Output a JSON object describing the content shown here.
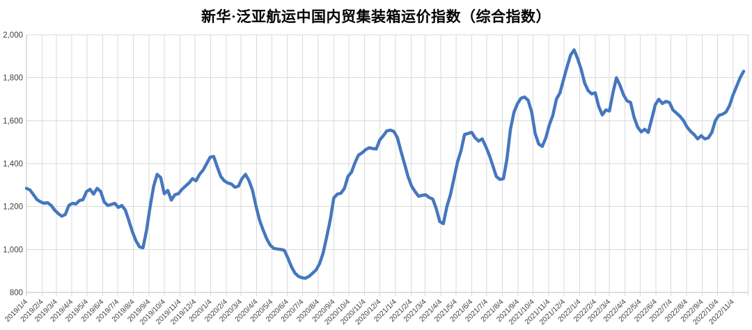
{
  "chart_data": {
    "type": "line",
    "title": "新华·泛亚航运中国内贸集装箱运价指数（综合指数）",
    "grid": true,
    "legend": "none",
    "background_color": "#ffffff",
    "gridline_color": "#d9d9d9",
    "axis_line_color": "#bfbfbf",
    "axis_label_color": "#404040",
    "ylim": [
      800,
      2000
    ],
    "y_ticks": [
      800,
      1000,
      1200,
      1400,
      1600,
      1800,
      2000
    ],
    "y_tick_labels": [
      "800",
      "1,000",
      "1,200",
      "1,400",
      "1,600",
      "1,800",
      "2,000"
    ],
    "x_tick_labels": [
      "2019/1/4",
      "2019/2/4",
      "2019/3/4",
      "2019/4/4",
      "2019/5/4",
      "2019/6/4",
      "2019/7/4",
      "2019/8/4",
      "2019/9/4",
      "2019/10/4",
      "2019/11/4",
      "2019/12/4",
      "2020/1/4",
      "2020/2/4",
      "2020/3/4",
      "2020/4/4",
      "2020/5/4",
      "2020/6/4",
      "2020/7/4",
      "2020/8/4",
      "2020/9/4",
      "2020/10/4",
      "2020/11/4",
      "2020/12/4",
      "2021/1/4",
      "2021/2/4",
      "2021/3/4",
      "2021/4/4",
      "2021/5/4",
      "2021/6/4",
      "2021/7/4",
      "2021/8/4",
      "2021/9/4",
      "2021/10/4",
      "2021/11/4",
      "2021/12/4",
      "2022/1/4",
      "2022/2/4",
      "2022/3/4",
      "2022/4/4",
      "2022/5/4",
      "2022/6/4",
      "2022/7/4",
      "2022/8/4",
      "2022/9/4",
      "2022/10/4",
      "2022/11/4"
    ],
    "series": [
      {
        "name": "综合指数",
        "color": "#4677be",
        "line_width": 4.5,
        "x_start": "2019/1/4",
        "x_interval": "weekly",
        "values": [
          1285,
          1277,
          1255,
          1232,
          1222,
          1215,
          1218,
          1205,
          1183,
          1167,
          1155,
          1163,
          1205,
          1215,
          1212,
          1228,
          1232,
          1270,
          1280,
          1258,
          1285,
          1270,
          1222,
          1205,
          1210,
          1215,
          1196,
          1205,
          1183,
          1134,
          1082,
          1040,
          1012,
          1008,
          1090,
          1200,
          1295,
          1350,
          1335,
          1260,
          1275,
          1230,
          1255,
          1260,
          1280,
          1295,
          1310,
          1330,
          1320,
          1350,
          1370,
          1400,
          1430,
          1433,
          1385,
          1340,
          1320,
          1310,
          1305,
          1290,
          1295,
          1330,
          1350,
          1320,
          1275,
          1200,
          1135,
          1090,
          1050,
          1020,
          1005,
          1002,
          1000,
          996,
          960,
          920,
          890,
          875,
          868,
          866,
          875,
          890,
          905,
          935,
          985,
          1060,
          1140,
          1240,
          1258,
          1262,
          1285,
          1340,
          1360,
          1405,
          1440,
          1450,
          1465,
          1474,
          1470,
          1468,
          1510,
          1530,
          1552,
          1556,
          1550,
          1520,
          1458,
          1400,
          1340,
          1295,
          1270,
          1248,
          1252,
          1255,
          1242,
          1235,
          1190,
          1130,
          1120,
          1200,
          1255,
          1330,
          1406,
          1460,
          1536,
          1540,
          1546,
          1520,
          1505,
          1515,
          1480,
          1440,
          1390,
          1340,
          1326,
          1330,
          1420,
          1560,
          1640,
          1680,
          1705,
          1710,
          1695,
          1640,
          1540,
          1491,
          1480,
          1520,
          1580,
          1625,
          1700,
          1730,
          1790,
          1850,
          1905,
          1930,
          1890,
          1840,
          1775,
          1740,
          1725,
          1730,
          1665,
          1627,
          1650,
          1645,
          1730,
          1800,
          1765,
          1720,
          1692,
          1685,
          1615,
          1570,
          1548,
          1560,
          1545,
          1610,
          1675,
          1700,
          1680,
          1690,
          1685,
          1650,
          1635,
          1620,
          1600,
          1570,
          1550,
          1535,
          1515,
          1530,
          1515,
          1520,
          1545,
          1600,
          1625,
          1630,
          1640,
          1670,
          1720,
          1760,
          1800,
          1830
        ]
      }
    ]
  }
}
